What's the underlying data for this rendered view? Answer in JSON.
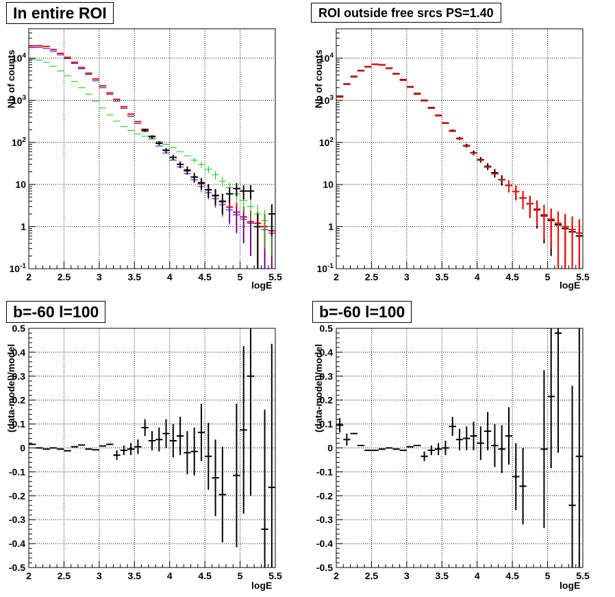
{
  "chart_data": [
    {
      "type": "scatter",
      "title": "In entire ROI",
      "xlabel": "logE",
      "ylabel": "Nb of counts",
      "xlim": [
        2,
        5.5
      ],
      "ylim": [
        0.1,
        50000
      ],
      "yscale": "log",
      "grid": true,
      "xticks": [
        2,
        2.5,
        3,
        3.5,
        4,
        4.5,
        5,
        5.5
      ],
      "yticks": [
        0.1,
        1,
        10,
        100,
        1000,
        10000
      ],
      "ytick_labels": [
        "10^-1",
        "1",
        "10",
        "10^2",
        "10^3",
        "10^4"
      ],
      "series": [
        {
          "color": "#ff0000",
          "x": [
            2.05,
            2.15,
            2.25,
            2.35,
            2.45,
            2.55,
            2.65,
            2.75,
            2.85,
            2.95,
            3.05,
            3.15,
            3.25,
            3.35,
            3.45,
            3.55,
            3.65,
            3.75,
            3.85,
            3.95,
            4.05,
            4.15,
            4.25,
            4.35,
            4.45,
            4.55,
            4.65,
            4.75,
            4.85,
            4.95,
            5.05,
            5.15,
            5.25,
            5.35,
            5.45
          ],
          "y": [
            19500,
            19800,
            19000,
            16000,
            13000,
            10500,
            8000,
            6000,
            4400,
            3200,
            2200,
            1500,
            1050,
            700,
            470,
            310,
            205,
            140,
            95,
            65,
            44,
            30,
            21,
            15,
            10.5,
            7.5,
            5.4,
            3.9,
            2.9,
            2.2,
            1.7,
            1.3,
            1.2,
            1.0,
            0.8
          ],
          "err": [
            0,
            0,
            0,
            0,
            0,
            0,
            0,
            0,
            0,
            0,
            0,
            0,
            0,
            0,
            0,
            0,
            0,
            0,
            0,
            0,
            0,
            0,
            0,
            0,
            3,
            2.5,
            2.2,
            2,
            1.7,
            1.5,
            1.3,
            1.1,
            1.1,
            1,
            0.9
          ]
        },
        {
          "color": "#0000ff",
          "x": [
            2.05,
            2.15,
            2.25,
            2.35,
            2.45,
            2.55,
            2.65,
            2.75,
            2.85,
            2.95,
            3.05,
            3.15,
            3.25,
            3.35,
            3.45,
            3.55,
            3.65,
            3.75,
            3.85,
            3.95,
            4.05,
            4.15,
            4.25,
            4.35,
            4.45,
            4.55,
            4.65,
            4.75,
            4.85,
            4.95,
            5.05,
            5.15,
            5.25,
            5.35,
            5.45
          ],
          "y": [
            17800,
            18000,
            17000,
            14500,
            12000,
            9800,
            7500,
            5600,
            4100,
            2900,
            2000,
            1380,
            950,
            640,
            420,
            280,
            180,
            122,
            82,
            56,
            38,
            26,
            18,
            13,
            9,
            6.4,
            4.6,
            3.3,
            2.5,
            1.9,
            1.5,
            1.2,
            1.0,
            0.85,
            0.7
          ],
          "err": [
            0,
            0,
            0,
            0,
            0,
            0,
            0,
            0,
            0,
            0,
            0,
            0,
            0,
            0,
            0,
            0,
            0,
            0,
            0,
            0,
            0,
            0,
            0,
            0,
            2.5,
            2,
            1.8,
            1.6,
            1.4,
            1.2,
            1.1,
            1,
            0.9,
            0.8,
            0.7
          ]
        },
        {
          "color": "#00cc00",
          "x": [
            2.05,
            2.15,
            2.25,
            2.35,
            2.45,
            2.55,
            2.65,
            2.75,
            2.85,
            2.95,
            3.05,
            3.15,
            3.25,
            3.35,
            3.45,
            3.55,
            3.65,
            3.75,
            3.85,
            3.95,
            4.05,
            4.15,
            4.25,
            4.35,
            4.45,
            4.55,
            4.65,
            4.75,
            4.85,
            4.95,
            5.05,
            5.15,
            5.25,
            5.35,
            5.45
          ],
          "y": [
            9500,
            9000,
            8000,
            6500,
            5000,
            3800,
            2800,
            2000,
            1400,
            960,
            660,
            450,
            320,
            240,
            190,
            160,
            140,
            120,
            105,
            90,
            75,
            60,
            48,
            38,
            30,
            23,
            17,
            12,
            8.5,
            6,
            4.2,
            3,
            2,
            1.4,
            1
          ],
          "err": [
            0,
            0,
            0,
            0,
            0,
            0,
            0,
            0,
            0,
            0,
            0,
            0,
            0,
            0,
            0,
            0,
            0,
            0,
            0,
            0,
            0,
            0,
            0,
            6,
            5,
            4.5,
            3.8,
            3.2,
            2.8,
            2.3,
            2,
            1.6,
            1.3,
            1.1,
            0.8
          ]
        },
        {
          "color": "#000000",
          "x": [
            2.05,
            2.15,
            2.25,
            2.35,
            2.45,
            2.55,
            2.65,
            2.75,
            2.85,
            2.95,
            3.05,
            3.15,
            3.25,
            3.35,
            3.45,
            3.55,
            3.65,
            3.75,
            3.85,
            3.95,
            4.05,
            4.15,
            4.25,
            4.35,
            4.45,
            4.55,
            4.65,
            4.75,
            4.85,
            4.95,
            5.05,
            5.15,
            5.25,
            5.35,
            5.45
          ],
          "y": [
            null,
            null,
            null,
            null,
            null,
            null,
            null,
            null,
            null,
            null,
            null,
            null,
            null,
            null,
            null,
            null,
            195,
            136,
            96,
            65,
            44,
            30,
            22,
            15,
            11,
            7.5,
            5.5,
            4,
            6,
            8,
            7,
            7,
            1,
            null,
            2
          ],
          "err": [
            0,
            0,
            0,
            0,
            0,
            0,
            0,
            0,
            0,
            0,
            0,
            0,
            0,
            0,
            0,
            0,
            14,
            12,
            10,
            8,
            6.6,
            5.5,
            4.7,
            3.9,
            3.3,
            2.7,
            2.3,
            2,
            2.4,
            2.8,
            2.6,
            2.6,
            0.99,
            0,
            1.4
          ]
        }
      ]
    },
    {
      "type": "scatter",
      "title": "ROI outside free srcs PS=1.40",
      "xlabel": "logE",
      "ylabel": "Nb of counts",
      "xlim": [
        2,
        5.5
      ],
      "ylim": [
        0.1,
        50000
      ],
      "yscale": "log",
      "grid": true,
      "xticks": [
        2,
        2.5,
        3,
        3.5,
        4,
        4.5,
        5,
        5.5
      ],
      "yticks": [
        0.1,
        1,
        10,
        100,
        1000,
        10000
      ],
      "ytick_labels": [
        "10^-1",
        "1",
        "10",
        "10^2",
        "10^3",
        "10^4"
      ],
      "series": [
        {
          "color": "#000000",
          "x": [
            2.05,
            2.15,
            2.25,
            2.35,
            2.45,
            2.55,
            2.65,
            2.75,
            2.85,
            2.95,
            3.05,
            3.15,
            3.25,
            3.35,
            3.45,
            3.55,
            3.65,
            3.75,
            3.85,
            3.95,
            4.05,
            4.15,
            4.25,
            4.35,
            4.45,
            4.55,
            4.65,
            4.75,
            4.85,
            4.95,
            5.05,
            5.15,
            5.25,
            5.35,
            5.45
          ],
          "y": [
            1250,
            2450,
            3700,
            5100,
            6300,
            7200,
            7000,
            5800,
            4300,
            3100,
            2100,
            1450,
            1000,
            670,
            440,
            290,
            190,
            125,
            84,
            57,
            39,
            27,
            19,
            13,
            9.5,
            6.8,
            4.8,
            3.5,
            2.5,
            1.8,
            1.4,
            1.1,
            0.9,
            0.75,
            0.6
          ],
          "err": [
            0,
            0,
            0,
            0,
            0,
            0,
            0,
            0,
            0,
            0,
            0,
            0,
            0,
            0,
            0,
            0,
            14,
            11,
            9,
            7.5,
            6,
            5,
            4.3,
            3.6,
            3,
            2.6,
            2.2,
            1.9,
            1.6,
            1.4,
            1.2,
            1,
            1,
            0.9,
            0.8
          ]
        },
        {
          "color": "#ff0000",
          "x": [
            2.05,
            2.15,
            2.25,
            2.35,
            2.45,
            2.55,
            2.65,
            2.75,
            2.85,
            2.95,
            3.05,
            3.15,
            3.25,
            3.35,
            3.45,
            3.55,
            3.65,
            3.75,
            3.85,
            3.95,
            4.05,
            4.15,
            4.25,
            4.35,
            4.45,
            4.55,
            4.65,
            4.75,
            4.85,
            4.95,
            5.05,
            5.15,
            5.25,
            5.35,
            5.45
          ],
          "y": [
            1200,
            2400,
            3600,
            5000,
            6200,
            7100,
            6900,
            5700,
            4200,
            3000,
            2050,
            1400,
            970,
            650,
            430,
            285,
            185,
            122,
            82,
            56,
            38,
            26,
            18,
            13,
            9.5,
            6.8,
            4.8,
            3.5,
            2.6,
            1.9,
            1.5,
            1.2,
            1,
            0.85,
            0.7
          ],
          "err": [
            0,
            0,
            0,
            0,
            0,
            0,
            0,
            0,
            0,
            0,
            0,
            0,
            0,
            0,
            0,
            0,
            0,
            0,
            0,
            0,
            0,
            0,
            0,
            0,
            3,
            2.6,
            2.2,
            1.9,
            1.6,
            1.4,
            1.2,
            1.1,
            1,
            0.9,
            0.8
          ]
        }
      ]
    },
    {
      "type": "scatter",
      "title": "b=-60 l=100",
      "xlabel": "logE",
      "ylabel": "(data-model)/model",
      "xlim": [
        2,
        5.5
      ],
      "ylim": [
        -0.5,
        0.5
      ],
      "grid": true,
      "xticks": [
        2,
        2.5,
        3,
        3.5,
        4,
        4.5,
        5,
        5.5
      ],
      "yticks": [
        -0.5,
        -0.4,
        -0.3,
        -0.2,
        -0.1,
        0,
        0.1,
        0.2,
        0.3,
        0.4,
        0.5
      ],
      "series": [
        {
          "color": "#000000",
          "x": [
            2.05,
            2.15,
            2.25,
            2.35,
            2.45,
            2.55,
            2.65,
            2.75,
            2.85,
            2.95,
            3.05,
            3.15,
            3.25,
            3.35,
            3.45,
            3.55,
            3.65,
            3.75,
            3.85,
            3.95,
            4.05,
            4.15,
            4.25,
            4.35,
            4.45,
            4.55,
            4.65,
            4.75,
            4.85,
            4.95,
            5.05,
            5.15,
            5.25,
            5.35,
            5.45
          ],
          "y": [
            0.015,
            0.0,
            -0.005,
            0.0,
            -0.005,
            -0.012,
            0.005,
            0.012,
            -0.005,
            -0.008,
            0.008,
            0.015,
            -0.03,
            -0.01,
            -0.005,
            0.005,
            0.085,
            0.03,
            0.035,
            0.06,
            0.03,
            0.05,
            -0.02,
            -0.015,
            0.065,
            -0.035,
            -0.125,
            -0.195,
            null,
            -0.115,
            0.075,
            0.3,
            null,
            -0.34,
            -0.165
          ],
          "err": [
            0,
            0,
            0,
            0,
            0,
            0,
            0,
            0,
            0,
            0,
            0,
            0,
            0.02,
            0.02,
            0.025,
            0.03,
            0.035,
            0.04,
            0.05,
            0.06,
            0.07,
            0.08,
            0.09,
            0.1,
            0.12,
            0.14,
            0.16,
            0.2,
            0,
            0.3,
            0.35,
            0.5,
            0,
            0.5,
            0.6
          ]
        }
      ]
    },
    {
      "type": "scatter",
      "title": "b=-60 l=100",
      "xlabel": "logE",
      "ylabel": "(data-model)/model",
      "xlim": [
        2,
        5.5
      ],
      "ylim": [
        -0.5,
        0.5
      ],
      "grid": true,
      "xticks": [
        2,
        2.5,
        3,
        3.5,
        4,
        4.5,
        5,
        5.5
      ],
      "yticks": [
        -0.5,
        -0.4,
        -0.3,
        -0.2,
        -0.1,
        0,
        0.1,
        0.2,
        0.3,
        0.4,
        0.5
      ],
      "series": [
        {
          "color": "#000000",
          "x": [
            2.05,
            2.15,
            2.25,
            2.35,
            2.45,
            2.55,
            2.65,
            2.75,
            2.85,
            2.95,
            3.05,
            3.15,
            3.25,
            3.35,
            3.45,
            3.55,
            3.65,
            3.75,
            3.85,
            3.95,
            4.05,
            4.15,
            4.25,
            4.35,
            4.45,
            4.55,
            4.65,
            4.75,
            4.85,
            4.95,
            5.05,
            5.15,
            5.25,
            5.35,
            5.45
          ],
          "y": [
            0.095,
            0.035,
            0.06,
            0.01,
            -0.01,
            -0.01,
            -0.005,
            0.0,
            -0.005,
            -0.01,
            0.005,
            0.01,
            -0.035,
            -0.01,
            -0.005,
            0.0,
            0.09,
            0.035,
            0.04,
            0.05,
            0.02,
            0.07,
            0.01,
            -0.005,
            0.05,
            -0.12,
            -0.16,
            null,
            null,
            -0.005,
            0.215,
            0.48,
            null,
            -0.24,
            -0.035
          ],
          "err": [
            0.03,
            0.025,
            0,
            0,
            0,
            0,
            0,
            0,
            0,
            0,
            0,
            0,
            0.02,
            0.02,
            0.025,
            0.03,
            0.04,
            0.045,
            0.05,
            0.06,
            0.07,
            0.08,
            0.09,
            0.1,
            0.12,
            0.14,
            0.16,
            0,
            0,
            0.33,
            0.3,
            0.5,
            0,
            0.5,
            0.55
          ]
        }
      ]
    }
  ]
}
